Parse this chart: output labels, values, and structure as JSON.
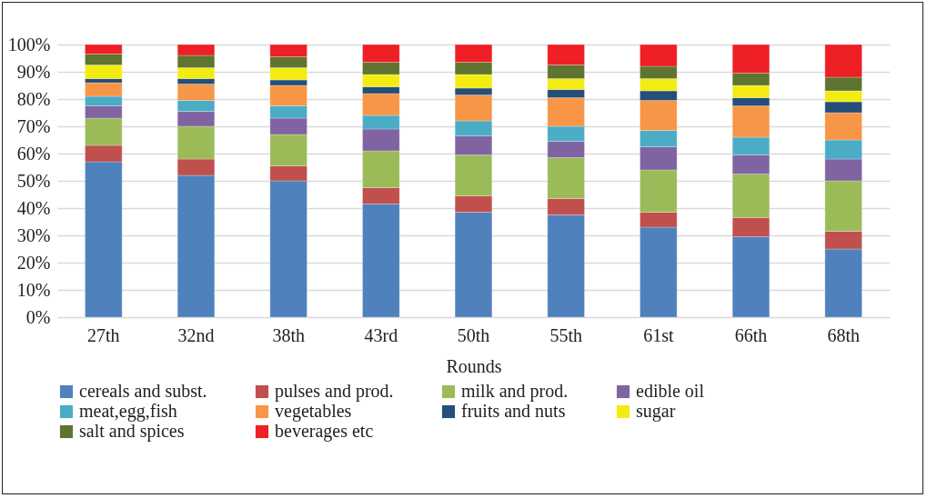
{
  "chart_data": {
    "type": "bar",
    "stacked": true,
    "xlabel": "Rounds",
    "categories": [
      "27th",
      "32nd",
      "38th",
      "43rd",
      "50th",
      "55th",
      "61st",
      "66th",
      "68th"
    ],
    "series": [
      {
        "name": "cereals and subst.",
        "color": "#4f81bd",
        "values": [
          57,
          52,
          50,
          41.5,
          38.5,
          37.5,
          33,
          29.5,
          25
        ]
      },
      {
        "name": "pulses and prod.",
        "color": "#c0504d",
        "values": [
          6,
          6,
          5.5,
          6,
          6,
          6,
          5.5,
          7,
          6.5
        ]
      },
      {
        "name": "milk and prod.",
        "color": "#9bbb59",
        "values": [
          10,
          12,
          11.5,
          13.5,
          15,
          15,
          15.5,
          16,
          18.5
        ]
      },
      {
        "name": "edible oil",
        "color": "#8064a2",
        "values": [
          4.5,
          5.5,
          6,
          8,
          7,
          6,
          8.5,
          7,
          8
        ]
      },
      {
        "name": "meat,egg,fish",
        "color": "#4bacc6",
        "values": [
          3.5,
          4,
          4.5,
          5,
          5.5,
          5.5,
          6,
          6.5,
          7
        ]
      },
      {
        "name": "vegetables",
        "color": "#f79646",
        "values": [
          5,
          6,
          7.5,
          8,
          9.5,
          10.5,
          11,
          11.5,
          10
        ]
      },
      {
        "name": "fruits and nuts",
        "color": "#254e78",
        "values": [
          1.5,
          2,
          2,
          2.5,
          2.5,
          3,
          3.5,
          3,
          4
        ]
      },
      {
        "name": "sugar",
        "color": "#f3ec12",
        "values": [
          5,
          4,
          4.5,
          4.5,
          5,
          4,
          4.5,
          4.5,
          4
        ]
      },
      {
        "name": "salt and spices",
        "color": "#5e7430",
        "values": [
          4,
          4.5,
          4,
          4.5,
          4.5,
          5,
          4.5,
          4.5,
          5
        ]
      },
      {
        "name": "beverages etc",
        "color": "#ee1f25",
        "values": [
          3.5,
          4,
          4.5,
          6.5,
          6.5,
          7.5,
          8,
          10.5,
          12
        ]
      }
    ],
    "ylim": [
      0,
      100
    ],
    "yticks": [
      {
        "value": 0,
        "label": "0%"
      },
      {
        "value": 10,
        "label": "10%"
      },
      {
        "value": 20,
        "label": "20%"
      },
      {
        "value": 30,
        "label": "30%"
      },
      {
        "value": 40,
        "label": "40%"
      },
      {
        "value": 50,
        "label": "50%"
      },
      {
        "value": 60,
        "label": "60%"
      },
      {
        "value": 70,
        "label": "70%"
      },
      {
        "value": 80,
        "label": "80%"
      },
      {
        "value": 90,
        "label": "90%"
      },
      {
        "value": 100,
        "label": "100%"
      }
    ],
    "grid": "y",
    "legend": "bottom"
  }
}
